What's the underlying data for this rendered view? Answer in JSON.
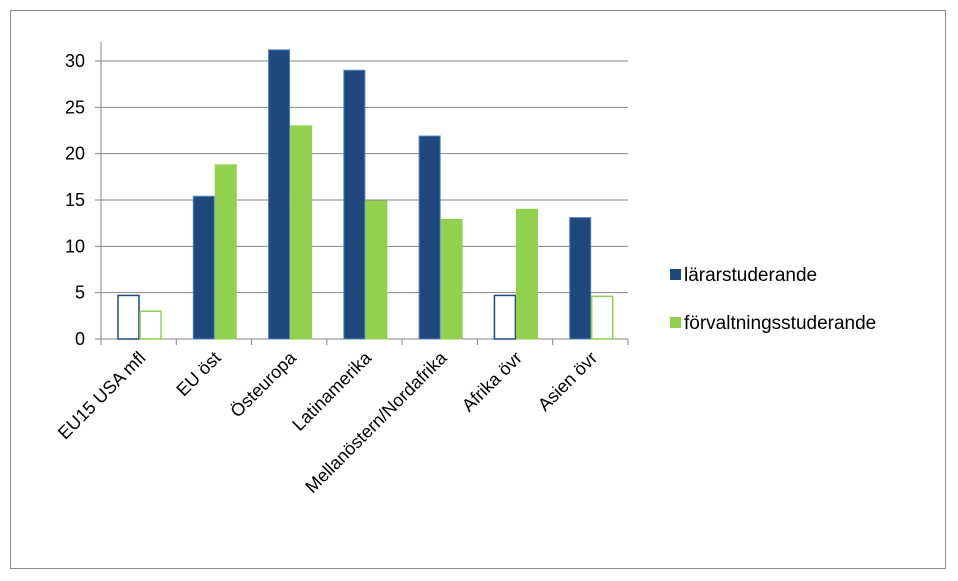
{
  "chart_data": {
    "type": "bar",
    "categories": [
      "EU15 USA mfl",
      "EU öst",
      "Östeuropa",
      "Latinamerika",
      "Mellanöstern/Nordafrika",
      "Afrika övr",
      "Asien övr"
    ],
    "series": [
      {
        "name": "lärarstuderande",
        "color": "#1f497d",
        "values": [
          4.7,
          15.4,
          31.2,
          29.0,
          21.9,
          4.7,
          13.1
        ],
        "hollow": [
          true,
          false,
          false,
          false,
          false,
          true,
          false
        ]
      },
      {
        "name": "förvaltningsstuderande",
        "color": "#92d050",
        "values": [
          3.0,
          18.8,
          23.0,
          14.9,
          12.9,
          14.0,
          4.6
        ],
        "hollow": [
          true,
          false,
          false,
          false,
          false,
          false,
          true
        ]
      }
    ],
    "ylim": [
      0,
      32
    ],
    "yticks": [
      0,
      5,
      10,
      15,
      20,
      25,
      30
    ],
    "ytick_labels": [
      "0",
      "5",
      "10",
      "15",
      "20",
      "25",
      "30"
    ],
    "grid": true,
    "legend_position": "right",
    "title": "",
    "xlabel": "",
    "ylabel": ""
  }
}
